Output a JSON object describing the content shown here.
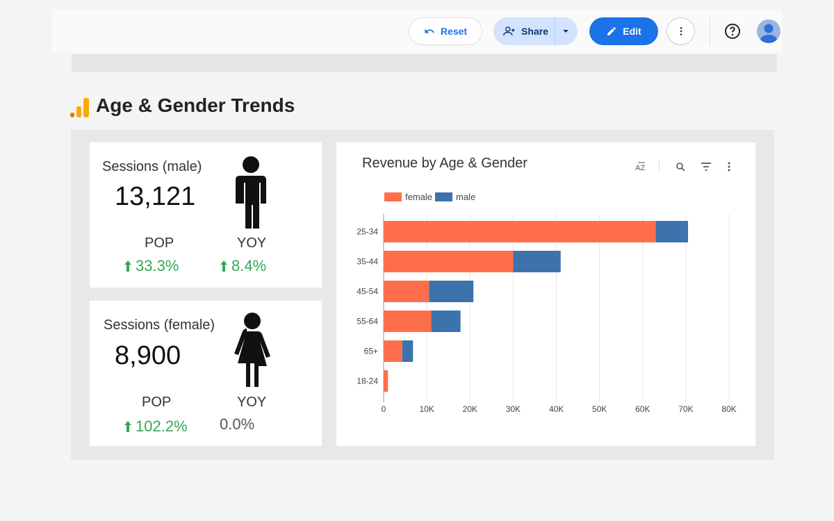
{
  "toolbar": {
    "reset_label": "Reset",
    "share_label": "Share",
    "edit_label": "Edit",
    "primary_color": "#1a73e8"
  },
  "page": {
    "title": "Age & Gender Trends"
  },
  "male_card": {
    "title": "Sessions (male)",
    "value": "13,121",
    "pop_label": "POP",
    "pop_value": "33.3%",
    "yoy_label": "YOY",
    "yoy_value": "8.4%"
  },
  "female_card": {
    "title": "Sessions (female)",
    "value": "8,900",
    "pop_label": "POP",
    "pop_value": "102.2%",
    "yoy_label": "YOY",
    "yoy_value": "0.0%"
  },
  "chart_data": {
    "type": "bar",
    "orientation": "horizontal",
    "stacked": true,
    "title": "Revenue by Age & Gender",
    "categories": [
      "25-34",
      "35-44",
      "45-54",
      "55-64",
      "65+",
      "18-24"
    ],
    "series": [
      {
        "name": "female",
        "color": "#ff6e4a",
        "values": [
          63000,
          30000,
          10500,
          11000,
          4300,
          1000
        ]
      },
      {
        "name": "male",
        "color": "#3d73ad",
        "values": [
          7500,
          11000,
          10300,
          6800,
          2500,
          0
        ]
      }
    ],
    "xlim": [
      0,
      80000
    ],
    "xticks": [
      0,
      10000,
      20000,
      30000,
      40000,
      50000,
      60000,
      70000,
      80000
    ],
    "xtick_labels": [
      "0",
      "10K",
      "20K",
      "30K",
      "40K",
      "50K",
      "60K",
      "70K",
      "80K"
    ],
    "legend": "top-left",
    "grid": true
  }
}
